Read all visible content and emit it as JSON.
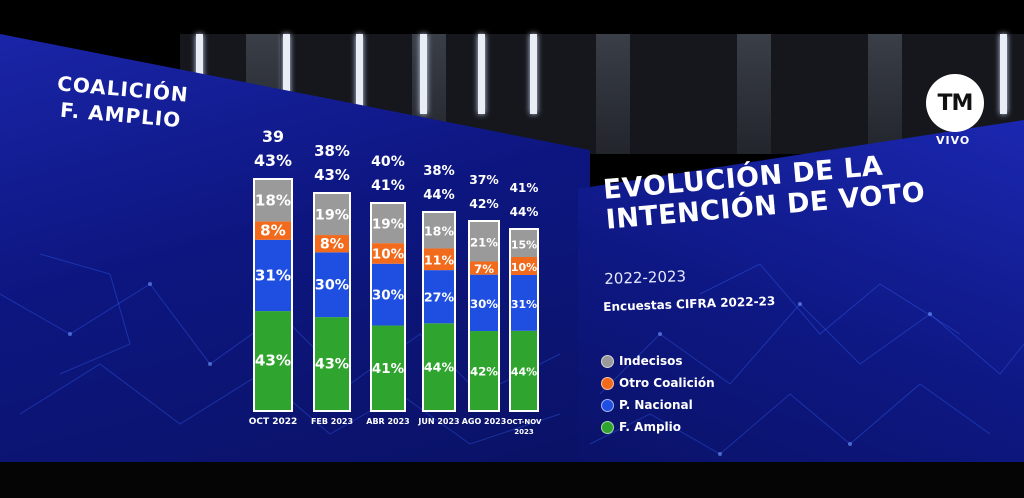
{
  "broadcast": {
    "logo": "TM",
    "live_label": "VIVO"
  },
  "left_heading": {
    "line1": "COALICIÓN",
    "line2": "F. AMPLIO"
  },
  "title": {
    "line1": "EVOLUCIÓN DE LA",
    "line2": "INTENCIÓN DE VOTO"
  },
  "period": "2022-2023",
  "source": "Encuestas CIFRA 2022-23",
  "legend": [
    {
      "label": "Indecisos",
      "color": "#9a9a9a"
    },
    {
      "label": "Otro Coalición",
      "color": "#f26a1b"
    },
    {
      "label": "P. Nacional",
      "color": "#1f4fe0"
    },
    {
      "label": "F. Amplio",
      "color": "#2fa52f"
    }
  ],
  "chart_data": {
    "type": "bar",
    "stacked": true,
    "title": "EVOLUCIÓN DE LA INTENCIÓN DE VOTO",
    "subtitle": "2022-2023",
    "categories": [
      "OCT 2022",
      "FEB 2023",
      "ABR 2023",
      "JUN 2023",
      "AGO 2023",
      "OCT-NOV 2023"
    ],
    "coalicion_totals": [
      "39",
      "38%",
      "40%",
      "38%",
      "37%",
      "41%"
    ],
    "f_amplio_totals": [
      "43%",
      "43%",
      "41%",
      "44%",
      "42%",
      "44%"
    ],
    "series": [
      {
        "name": "F. Amplio",
        "color": "#2fa52f",
        "values": [
          43,
          43,
          41,
          44,
          42,
          44
        ]
      },
      {
        "name": "P. Nacional",
        "color": "#1f4fe0",
        "values": [
          31,
          30,
          30,
          27,
          30,
          31
        ]
      },
      {
        "name": "Otro Coalición",
        "color": "#f26a1b",
        "values": [
          8,
          8,
          10,
          11,
          7,
          10
        ]
      },
      {
        "name": "Indecisos",
        "color": "#9a9a9a",
        "values": [
          18,
          19,
          19,
          18,
          21,
          15
        ]
      }
    ],
    "ylim": [
      0,
      100
    ]
  }
}
